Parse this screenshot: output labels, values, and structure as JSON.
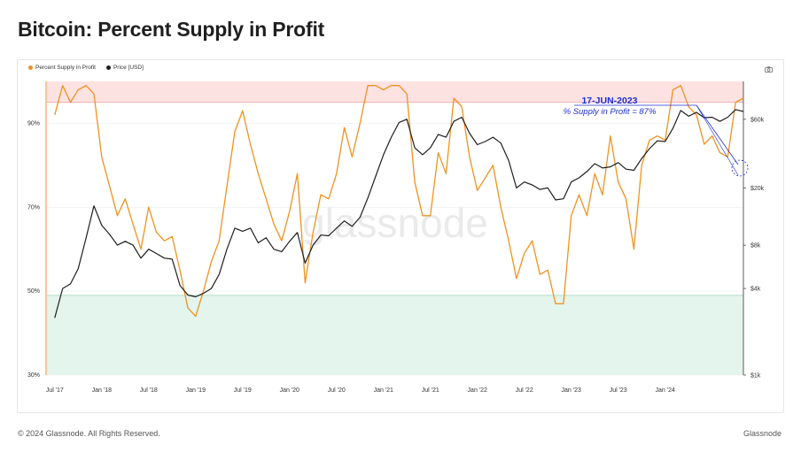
{
  "title": "Bitcoin: Percent Supply in Profit",
  "footer": {
    "copyright": "© 2024 Glassnode. All Rights Reserved.",
    "brand": "Glassnode"
  },
  "watermark": "glassnode",
  "icons": {
    "camera": "camera-icon"
  },
  "colors": {
    "profit": "#f0921e",
    "price": "#1f1f1f",
    "upper_band": "#fde2e2",
    "lower_band": "#e3f5ec",
    "annotation": "#1f2fd4"
  },
  "annotation": {
    "date": "17-JUN-2023",
    "text": "% Supply in Profit = 87%"
  },
  "chart_data": {
    "type": "line",
    "legend": [
      "Percent Supply in Profit",
      "Price [USD]"
    ],
    "legend_position": "top-left",
    "x_ticks": [
      "Jul '17",
      "Jan '18",
      "Jul '18",
      "Jan '19",
      "Jul '19",
      "Jan '20",
      "Jul '20",
      "Jan '21",
      "Jul '21",
      "Jan '22",
      "Jul '22",
      "Jan '23",
      "Jul '23",
      "Jan '24"
    ],
    "x_range": [
      "2017-06-01",
      "2024-11-30"
    ],
    "y_left": {
      "ticks": [
        "30%",
        "50%",
        "70%",
        "90%"
      ],
      "range": [
        30,
        100
      ]
    },
    "y_right": {
      "scale": "log",
      "ticks": [
        "$1k",
        "$4k",
        "$8k",
        "$20k",
        "$60k"
      ],
      "range": [
        1000,
        110000
      ]
    },
    "bands": [
      {
        "from": 95,
        "to": 100,
        "color": "#fde2e2"
      },
      {
        "from": 30,
        "to": 49,
        "color": "#e3f5ec"
      }
    ],
    "series": [
      {
        "name": "Percent Supply in Profit",
        "axis": "left",
        "x": [
          "2017-07",
          "2017-08",
          "2017-09",
          "2017-10",
          "2017-11",
          "2017-12",
          "2018-01",
          "2018-02",
          "2018-03",
          "2018-04",
          "2018-05",
          "2018-06",
          "2018-07",
          "2018-08",
          "2018-09",
          "2018-10",
          "2018-11",
          "2018-12",
          "2019-01",
          "2019-02",
          "2019-03",
          "2019-04",
          "2019-05",
          "2019-06",
          "2019-07",
          "2019-08",
          "2019-09",
          "2019-10",
          "2019-11",
          "2019-12",
          "2020-01",
          "2020-02",
          "2020-03",
          "2020-04",
          "2020-05",
          "2020-06",
          "2020-07",
          "2020-08",
          "2020-09",
          "2020-10",
          "2020-11",
          "2020-12",
          "2021-01",
          "2021-02",
          "2021-03",
          "2021-04",
          "2021-05",
          "2021-06",
          "2021-07",
          "2021-08",
          "2021-09",
          "2021-10",
          "2021-11",
          "2021-12",
          "2022-01",
          "2022-02",
          "2022-03",
          "2022-04",
          "2022-05",
          "2022-06",
          "2022-07",
          "2022-08",
          "2022-09",
          "2022-10",
          "2022-11",
          "2022-12",
          "2023-01",
          "2023-02",
          "2023-03",
          "2023-04",
          "2023-05",
          "2023-06",
          "2023-07",
          "2023-08",
          "2023-09",
          "2023-10",
          "2023-11",
          "2023-12",
          "2024-01",
          "2024-02",
          "2024-03",
          "2024-04",
          "2024-05",
          "2024-06",
          "2024-07",
          "2024-08",
          "2024-09",
          "2024-10",
          "2024-11"
        ],
        "values": [
          92,
          99,
          95,
          98,
          99,
          97,
          82,
          75,
          68,
          72,
          66,
          60,
          70,
          64,
          62,
          63,
          55,
          46,
          44,
          50,
          57,
          62,
          75,
          88,
          93,
          85,
          78,
          72,
          66,
          62,
          69,
          78,
          52,
          64,
          73,
          72,
          78,
          89,
          82,
          90,
          99,
          99,
          98,
          99,
          99,
          97,
          76,
          68,
          68,
          83,
          78,
          96,
          94,
          82,
          74,
          77,
          80,
          70,
          62,
          53,
          59,
          62,
          54,
          55,
          47,
          47,
          68,
          73,
          68,
          78,
          73,
          87,
          76,
          72,
          60,
          80,
          86,
          87,
          86,
          98,
          99,
          94,
          92,
          85,
          87,
          83,
          82,
          95,
          96
        ]
      },
      {
        "name": "Price [USD]",
        "axis": "right",
        "x": [
          "2017-07",
          "2017-08",
          "2017-09",
          "2017-10",
          "2017-11",
          "2017-12",
          "2018-01",
          "2018-02",
          "2018-03",
          "2018-04",
          "2018-05",
          "2018-06",
          "2018-07",
          "2018-08",
          "2018-09",
          "2018-10",
          "2018-11",
          "2018-12",
          "2019-01",
          "2019-02",
          "2019-03",
          "2019-04",
          "2019-05",
          "2019-06",
          "2019-07",
          "2019-08",
          "2019-09",
          "2019-10",
          "2019-11",
          "2019-12",
          "2020-01",
          "2020-02",
          "2020-03",
          "2020-04",
          "2020-05",
          "2020-06",
          "2020-07",
          "2020-08",
          "2020-09",
          "2020-10",
          "2020-11",
          "2020-12",
          "2021-01",
          "2021-02",
          "2021-03",
          "2021-04",
          "2021-05",
          "2021-06",
          "2021-07",
          "2021-08",
          "2021-09",
          "2021-10",
          "2021-11",
          "2021-12",
          "2022-01",
          "2022-02",
          "2022-03",
          "2022-04",
          "2022-05",
          "2022-06",
          "2022-07",
          "2022-08",
          "2022-09",
          "2022-10",
          "2022-11",
          "2022-12",
          "2023-01",
          "2023-02",
          "2023-03",
          "2023-04",
          "2023-05",
          "2023-06",
          "2023-07",
          "2023-08",
          "2023-09",
          "2023-10",
          "2023-11",
          "2023-12",
          "2024-01",
          "2024-02",
          "2024-03",
          "2024-04",
          "2024-05",
          "2024-06",
          "2024-07",
          "2024-08",
          "2024-09",
          "2024-10",
          "2024-11"
        ],
        "values": [
          2500,
          4000,
          4300,
          5500,
          9000,
          15000,
          11000,
          9500,
          8000,
          8500,
          8000,
          6500,
          7500,
          7000,
          6500,
          6400,
          4200,
          3600,
          3500,
          3700,
          4000,
          5000,
          7500,
          10500,
          10000,
          10500,
          8300,
          9000,
          7500,
          7200,
          8500,
          9800,
          6000,
          8000,
          9400,
          9300,
          10500,
          11800,
          10800,
          12500,
          17000,
          24000,
          34000,
          45000,
          57000,
          60000,
          38000,
          34000,
          38000,
          47000,
          45000,
          58000,
          62000,
          48000,
          40000,
          42000,
          45000,
          41000,
          31000,
          20000,
          22000,
          21000,
          19500,
          20000,
          16500,
          16800,
          22000,
          23500,
          26000,
          29500,
          27500,
          28000,
          30000,
          27000,
          26500,
          32000,
          37500,
          42500,
          42000,
          52000,
          69000,
          63000,
          67000,
          61500,
          62000,
          58000,
          62000,
          70000,
          68000
        ]
      }
    ]
  }
}
